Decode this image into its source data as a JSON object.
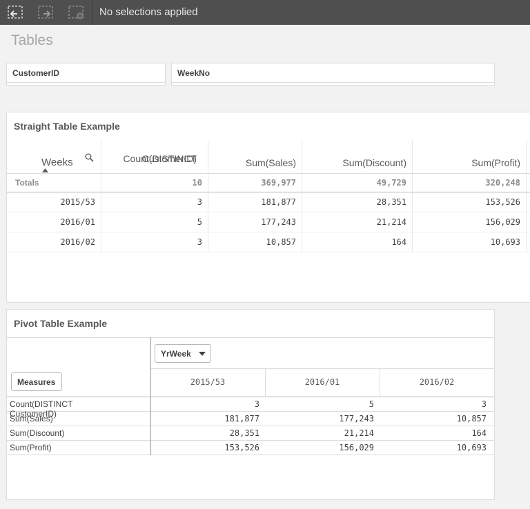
{
  "toolbar": {
    "back_icon": "selection-back-icon",
    "forward_icon": "selection-forward-icon",
    "clear_icon": "clear-selections-icon",
    "status": "No selections applied"
  },
  "sheet": {
    "title": "Tables"
  },
  "filters": [
    {
      "label": "CustomerID"
    },
    {
      "label": "WeekNo"
    }
  ],
  "straight_table": {
    "title": "Straight Table Example",
    "headers": [
      "Weeks",
      "Count(DISTINCT CustomerID)",
      "Sum(Sales)",
      "Sum(Discount)",
      "Sum(Profit)"
    ],
    "header_lines": {
      "count_1": "Count(DISTINCT",
      "count_2": "CustomerID)"
    },
    "totals": [
      "Totals",
      "10",
      "369,977",
      "49,729",
      "320,248"
    ],
    "rows": [
      [
        "2015/53",
        "3",
        "181,877",
        "28,351",
        "153,526"
      ],
      [
        "2016/01",
        "5",
        "177,243",
        "21,214",
        "156,029"
      ],
      [
        "2016/02",
        "3",
        "10,857",
        "164",
        "10,693"
      ]
    ]
  },
  "pivot_table": {
    "title": "Pivot Table Example",
    "column_dimension": "YrWeek",
    "row_dimension": "Measures",
    "columns": [
      "2015/53",
      "2016/01",
      "2016/02"
    ],
    "rows": [
      {
        "label": "Count(DISTINCT CustomerID)",
        "values": [
          "3",
          "5",
          "3"
        ]
      },
      {
        "label": "Sum(Sales)",
        "values": [
          "181,877",
          "177,243",
          "10,857"
        ]
      },
      {
        "label": "Sum(Discount)",
        "values": [
          "28,351",
          "21,214",
          "164"
        ]
      },
      {
        "label": "Sum(Profit)",
        "values": [
          "153,526",
          "156,029",
          "10,693"
        ]
      }
    ]
  }
}
